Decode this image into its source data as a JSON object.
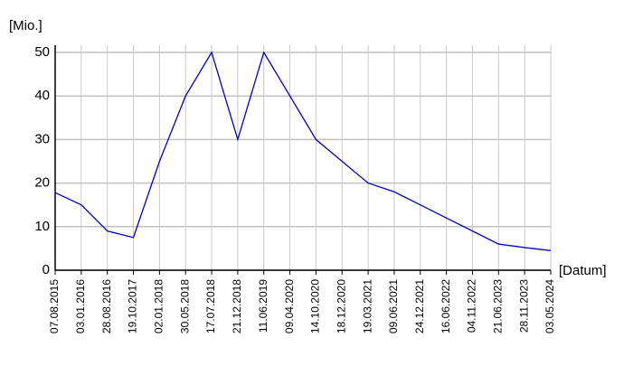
{
  "chart_data": {
    "type": "line",
    "x_label": "[Datum]",
    "y_label": "[Mio.]",
    "categories": [
      "07.08.2015",
      "03.01.2016",
      "28.08.2016",
      "19.10.2017",
      "02.01.2018",
      "30.05.2018",
      "17.07.2018",
      "21.12.2018",
      "11.06.2019",
      "09.04.2020",
      "14.10.2020",
      "18.12.2020",
      "19.03.2021",
      "09.06.2021",
      "24.12.2021",
      "16.06.2022",
      "04.11.2022",
      "21.06.2023",
      "28.11.2023",
      "03.05.2024"
    ],
    "series": [
      {
        "color": "#0000cc",
        "values": [
          17.8,
          15,
          9,
          7.5,
          25,
          40,
          50,
          30,
          50,
          40,
          30,
          25,
          20,
          18,
          15,
          12,
          9,
          6,
          5.2,
          4.5
        ]
      }
    ],
    "ylim": [
      0,
      50
    ],
    "yticks": [
      0,
      10,
      20,
      30,
      40,
      50
    ],
    "grid": true
  }
}
